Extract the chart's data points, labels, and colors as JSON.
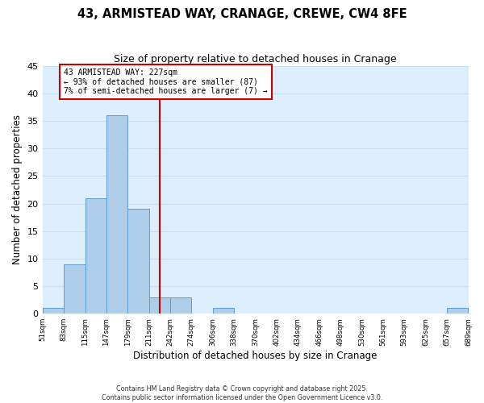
{
  "title": "43, ARMISTEAD WAY, CRANAGE, CREWE, CW4 8FE",
  "subtitle": "Size of property relative to detached houses in Cranage",
  "xlabel": "Distribution of detached houses by size in Cranage",
  "ylabel": "Number of detached properties",
  "bin_edges": [
    51,
    83,
    115,
    147,
    179,
    211,
    242,
    274,
    306,
    338,
    370,
    402,
    434,
    466,
    498,
    530,
    561,
    593,
    625,
    657,
    689
  ],
  "bin_labels": [
    "51sqm",
    "83sqm",
    "115sqm",
    "147sqm",
    "179sqm",
    "211sqm",
    "242sqm",
    "274sqm",
    "306sqm",
    "338sqm",
    "370sqm",
    "402sqm",
    "434sqm",
    "466sqm",
    "498sqm",
    "530sqm",
    "561sqm",
    "593sqm",
    "625sqm",
    "657sqm",
    "689sqm"
  ],
  "counts": [
    1,
    9,
    21,
    36,
    19,
    3,
    3,
    0,
    1,
    0,
    0,
    0,
    0,
    0,
    0,
    0,
    0,
    0,
    0,
    1,
    0
  ],
  "bar_color": "#aecde8",
  "bar_edge_color": "#5b9bd5",
  "grid_color": "#c8dff0",
  "background_color": "#ddeeff",
  "fig_background": "#ffffff",
  "vline_x": 227,
  "vline_color": "#cc0000",
  "annotation_line1": "43 ARMISTEAD WAY: 227sqm",
  "annotation_line2": "← 93% of detached houses are smaller (87)",
  "annotation_line3": "7% of semi-detached houses are larger (7) →",
  "ylim": [
    0,
    45
  ],
  "yticks": [
    0,
    5,
    10,
    15,
    20,
    25,
    30,
    35,
    40,
    45
  ],
  "footer_line1": "Contains HM Land Registry data © Crown copyright and database right 2025.",
  "footer_line2": "Contains public sector information licensed under the Open Government Licence v3.0."
}
